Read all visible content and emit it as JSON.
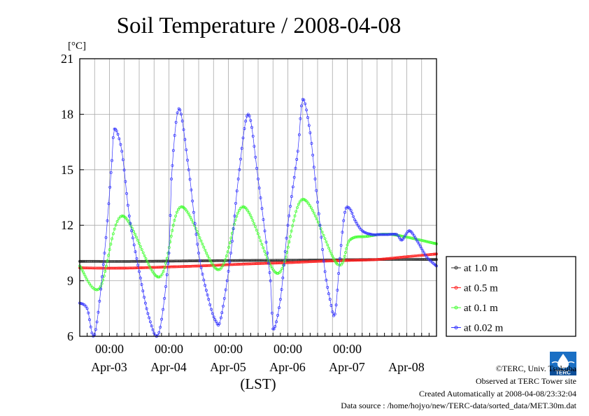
{
  "chart_data": {
    "type": "line",
    "title": "Soil Temperature / 2008-04-08",
    "ylabel": "[°C]",
    "xlabel": "(LST)",
    "ylim": [
      6,
      21
    ],
    "yticks": [
      "6",
      "9",
      "12",
      "15",
      "18",
      "21"
    ],
    "xlim": [
      0,
      144
    ],
    "x_unit": "hours since 2008-04-02 12:00 LST",
    "time_ticks": [
      "00:00",
      "00:00",
      "00:00",
      "00:00",
      "00:00"
    ],
    "date_labels": [
      "Apr-03",
      "Apr-04",
      "Apr-05",
      "Apr-06",
      "Apr-07",
      "Apr-08"
    ],
    "legend_position": "right",
    "series": [
      {
        "name": "at 1.0 m",
        "color": "#303030",
        "x": [
          0,
          24,
          48,
          72,
          96,
          120,
          144
        ],
        "values": [
          10.05,
          10.05,
          10.08,
          10.1,
          10.12,
          10.15,
          10.15
        ]
      },
      {
        "name": "at 0.5 m",
        "color": "#ff2020",
        "x": [
          0,
          12,
          24,
          36,
          48,
          60,
          72,
          84,
          96,
          108,
          120,
          132,
          144
        ],
        "values": [
          9.7,
          9.68,
          9.7,
          9.75,
          9.8,
          9.87,
          9.93,
          9.98,
          10.05,
          10.1,
          10.15,
          10.3,
          10.45
        ]
      },
      {
        "name": "at 0.1 m",
        "color": "#40ff30",
        "x": [
          0,
          8,
          17,
          32,
          41,
          56,
          66,
          80,
          90,
          104,
          109,
          116,
          126,
          144
        ],
        "values": [
          9.8,
          8.6,
          12.5,
          9.2,
          13.0,
          9.6,
          13.0,
          9.4,
          13.4,
          9.9,
          11.2,
          11.4,
          11.5,
          11.0
        ]
      },
      {
        "name": "at 0.02 m",
        "color": "#3030ff",
        "x": [
          0,
          3,
          6,
          10,
          13,
          14,
          17,
          20,
          24,
          28,
          32,
          36,
          37,
          40,
          44,
          48,
          52,
          55,
          57,
          61,
          64,
          68,
          72,
          77,
          78,
          81,
          84,
          88,
          90,
          93,
          95,
          97,
          99,
          101,
          103,
          105,
          107,
          109,
          111,
          114,
          118,
          121,
          124,
          128,
          130,
          133,
          136,
          140,
          144
        ],
        "values": [
          7.8,
          7.5,
          6.1,
          10.5,
          15.5,
          17.2,
          16.0,
          12.5,
          9.5,
          7.0,
          6.2,
          10.5,
          14.5,
          18.3,
          15.0,
          10.5,
          8.0,
          6.8,
          7.0,
          10.5,
          14.5,
          18.0,
          14.5,
          9.0,
          6.4,
          8.0,
          12.0,
          16.0,
          18.8,
          17.0,
          14.5,
          12.0,
          9.5,
          8.0,
          7.2,
          10.2,
          12.7,
          12.9,
          12.3,
          11.7,
          11.5,
          11.5,
          11.5,
          11.5,
          11.2,
          11.7,
          11.2,
          10.3,
          9.8
        ]
      }
    ]
  },
  "footer": {
    "copyright": "©TERC, Univ. Tsukuba",
    "observed": "Observed at TERC Tower site",
    "created": "Created Automatically at 2008-04-08/23:32:04",
    "source": "Data source : /home/hojyo/new/TERC-data/sorted_data/MET.30m.dat",
    "logo_text": "TERC"
  }
}
